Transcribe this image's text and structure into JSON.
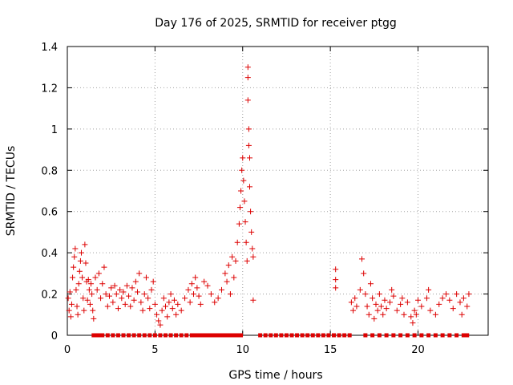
{
  "chart_data": {
    "type": "scatter",
    "title": "Day 176 of 2025, SRMTID for receiver ptgg",
    "xlabel": "GPS time / hours",
    "ylabel": "SRMTID / TECUs",
    "xlim": [
      0,
      24
    ],
    "ylim": [
      0,
      1.4
    ],
    "xticks": [
      0,
      5,
      10,
      15,
      20
    ],
    "yticks": [
      0,
      0.2,
      0.4,
      0.6,
      0.8,
      1,
      1.2,
      1.4
    ],
    "xtick_labels": [
      "0",
      "5",
      "10",
      "15",
      "20"
    ],
    "ytick_labels": [
      "0",
      "0.2",
      "0.4",
      "0.6",
      "0.8",
      "1",
      "1.2",
      "1.4"
    ],
    "grid": true,
    "marker": "plus",
    "color": "#dd0000",
    "series": [
      {
        "name": "SRMTID",
        "points": [
          [
            0.05,
            0.18
          ],
          [
            0.1,
            0.12
          ],
          [
            0.15,
            0.21
          ],
          [
            0.2,
            0.09
          ],
          [
            0.25,
            0.15
          ],
          [
            0.3,
            0.28
          ],
          [
            0.35,
            0.33
          ],
          [
            0.4,
            0.38
          ],
          [
            0.45,
            0.42
          ],
          [
            0.5,
            0.22
          ],
          [
            0.55,
            0.14
          ],
          [
            0.6,
            0.1
          ],
          [
            0.65,
            0.25
          ],
          [
            0.7,
            0.31
          ],
          [
            0.75,
            0.36
          ],
          [
            0.8,
            0.4
          ],
          [
            0.85,
            0.28
          ],
          [
            0.9,
            0.18
          ],
          [
            0.95,
            0.12
          ],
          [
            1.0,
            0.44
          ],
          [
            1.05,
            0.35
          ],
          [
            1.1,
            0.26
          ],
          [
            1.15,
            0.17
          ],
          [
            1.2,
            0.27
          ],
          [
            1.25,
            0.22
          ],
          [
            1.3,
            0.15
          ],
          [
            1.35,
            0.25
          ],
          [
            1.4,
            0.2
          ],
          [
            1.45,
            0.12
          ],
          [
            1.5,
            0.08
          ],
          [
            1.6,
            0.28
          ],
          [
            1.7,
            0.22
          ],
          [
            1.8,
            0.3
          ],
          [
            1.9,
            0.18
          ],
          [
            2.0,
            0.25
          ],
          [
            2.1,
            0.33
          ],
          [
            2.2,
            0.2
          ],
          [
            2.3,
            0.14
          ],
          [
            2.4,
            0.19
          ],
          [
            2.5,
            0.23
          ],
          [
            2.6,
            0.16
          ],
          [
            2.7,
            0.24
          ],
          [
            2.8,
            0.2
          ],
          [
            2.9,
            0.13
          ],
          [
            3.0,
            0.22
          ],
          [
            3.1,
            0.18
          ],
          [
            3.2,
            0.21
          ],
          [
            3.3,
            0.15
          ],
          [
            3.4,
            0.24
          ],
          [
            3.5,
            0.19
          ],
          [
            3.6,
            0.14
          ],
          [
            3.7,
            0.23
          ],
          [
            3.8,
            0.17
          ],
          [
            3.9,
            0.26
          ],
          [
            4.0,
            0.21
          ],
          [
            4.1,
            0.3
          ],
          [
            4.2,
            0.16
          ],
          [
            4.3,
            0.12
          ],
          [
            4.4,
            0.2
          ],
          [
            4.5,
            0.28
          ],
          [
            4.6,
            0.18
          ],
          [
            4.7,
            0.13
          ],
          [
            4.8,
            0.22
          ],
          [
            4.9,
            0.26
          ],
          [
            5.0,
            0.15
          ],
          [
            5.1,
            0.1
          ],
          [
            5.2,
            0.07
          ],
          [
            5.3,
            0.05
          ],
          [
            5.4,
            0.12
          ],
          [
            5.5,
            0.18
          ],
          [
            5.6,
            0.14
          ],
          [
            5.7,
            0.09
          ],
          [
            5.8,
            0.16
          ],
          [
            5.9,
            0.2
          ],
          [
            6.0,
            0.13
          ],
          [
            6.1,
            0.17
          ],
          [
            6.2,
            0.1
          ],
          [
            6.3,
            0.15
          ],
          [
            6.5,
            0.12
          ],
          [
            6.7,
            0.18
          ],
          [
            6.9,
            0.22
          ],
          [
            7.0,
            0.16
          ],
          [
            7.1,
            0.25
          ],
          [
            7.2,
            0.2
          ],
          [
            7.3,
            0.28
          ],
          [
            7.4,
            0.23
          ],
          [
            7.5,
            0.19
          ],
          [
            7.6,
            0.15
          ],
          [
            7.8,
            0.26
          ],
          [
            8.0,
            0.24
          ],
          [
            8.2,
            0.2
          ],
          [
            8.4,
            0.16
          ],
          [
            8.6,
            0.18
          ],
          [
            8.8,
            0.22
          ],
          [
            9.0,
            0.3
          ],
          [
            9.1,
            0.26
          ],
          [
            9.2,
            0.34
          ],
          [
            9.3,
            0.2
          ],
          [
            9.4,
            0.38
          ],
          [
            9.5,
            0.28
          ],
          [
            9.6,
            0.36
          ],
          [
            9.7,
            0.45
          ],
          [
            9.8,
            0.54
          ],
          [
            9.85,
            0.62
          ],
          [
            9.9,
            0.7
          ],
          [
            9.95,
            0.8
          ],
          [
            10.0,
            0.86
          ],
          [
            10.05,
            0.75
          ],
          [
            10.1,
            0.65
          ],
          [
            10.15,
            0.55
          ],
          [
            10.2,
            0.45
          ],
          [
            10.25,
            0.36
          ],
          [
            10.3,
            1.14
          ],
          [
            10.3,
            1.25
          ],
          [
            10.3,
            1.3
          ],
          [
            10.35,
            1.0
          ],
          [
            10.35,
            0.92
          ],
          [
            10.4,
            0.86
          ],
          [
            10.4,
            0.72
          ],
          [
            10.45,
            0.6
          ],
          [
            10.5,
            0.5
          ],
          [
            10.55,
            0.42
          ],
          [
            10.6,
            0.38
          ],
          [
            10.6,
            0.17
          ],
          [
            15.3,
            0.32
          ],
          [
            15.3,
            0.27
          ],
          [
            15.3,
            0.23
          ],
          [
            16.2,
            0.16
          ],
          [
            16.3,
            0.12
          ],
          [
            16.4,
            0.18
          ],
          [
            16.5,
            0.14
          ],
          [
            16.7,
            0.22
          ],
          [
            16.8,
            0.37
          ],
          [
            16.9,
            0.3
          ],
          [
            17.0,
            0.2
          ],
          [
            17.1,
            0.14
          ],
          [
            17.2,
            0.1
          ],
          [
            17.3,
            0.25
          ],
          [
            17.4,
            0.18
          ],
          [
            17.5,
            0.08
          ],
          [
            17.6,
            0.15
          ],
          [
            17.7,
            0.12
          ],
          [
            17.8,
            0.2
          ],
          [
            17.9,
            0.14
          ],
          [
            18.0,
            0.1
          ],
          [
            18.1,
            0.17
          ],
          [
            18.2,
            0.13
          ],
          [
            18.4,
            0.16
          ],
          [
            18.5,
            0.22
          ],
          [
            18.6,
            0.19
          ],
          [
            18.8,
            0.12
          ],
          [
            19.0,
            0.15
          ],
          [
            19.1,
            0.18
          ],
          [
            19.2,
            0.1
          ],
          [
            19.4,
            0.16
          ],
          [
            19.6,
            0.09
          ],
          [
            19.7,
            0.06
          ],
          [
            19.8,
            0.12
          ],
          [
            19.9,
            0.1
          ],
          [
            20.0,
            0.17
          ],
          [
            20.2,
            0.14
          ],
          [
            20.5,
            0.18
          ],
          [
            20.6,
            0.22
          ],
          [
            20.7,
            0.12
          ],
          [
            21.0,
            0.1
          ],
          [
            21.2,
            0.15
          ],
          [
            21.4,
            0.18
          ],
          [
            21.6,
            0.2
          ],
          [
            21.8,
            0.17
          ],
          [
            22.0,
            0.13
          ],
          [
            22.2,
            0.2
          ],
          [
            22.4,
            0.16
          ],
          [
            22.5,
            0.1
          ],
          [
            22.6,
            0.18
          ],
          [
            22.8,
            0.14
          ],
          [
            22.9,
            0.2
          ]
        ]
      }
    ],
    "zero_markers_x": [
      1.5,
      1.6,
      1.7,
      1.8,
      1.9,
      2.0,
      2.3,
      2.6,
      2.9,
      3.2,
      3.5,
      3.8,
      4.1,
      4.4,
      4.7,
      5.0,
      5.3,
      5.6,
      5.9,
      6.2,
      6.5,
      6.8,
      7.1,
      7.3,
      7.5,
      7.7,
      7.9,
      8.1,
      8.3,
      8.5,
      8.7,
      8.9,
      9.1,
      9.3,
      9.5,
      9.7,
      9.9,
      11.0,
      11.3,
      11.6,
      11.9,
      12.2,
      12.5,
      12.8,
      13.1,
      13.4,
      13.7,
      14.0,
      14.3,
      14.6,
      14.9,
      15.2,
      15.5,
      15.8,
      16.1,
      17.0,
      17.4,
      17.8,
      18.2,
      18.6,
      19.0,
      19.4,
      19.8,
      20.2,
      20.6,
      21.0,
      21.4,
      21.8,
      22.2,
      22.6,
      22.8
    ]
  }
}
